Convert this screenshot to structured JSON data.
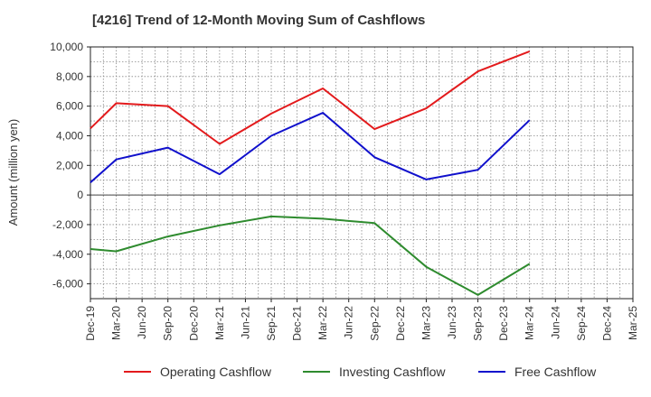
{
  "chart_data": {
    "type": "line",
    "title": "[4216]  Trend of 12-Month Moving Sum of Cashflows",
    "ylabel": "Amount (million yen)",
    "xlabel": "",
    "ylim": [
      -7000,
      10000
    ],
    "yticks": [
      -6000,
      -4000,
      -2000,
      0,
      2000,
      4000,
      6000,
      8000,
      10000
    ],
    "ytick_labels": [
      "-6,000",
      "-4,000",
      "-2,000",
      "0",
      "2,000",
      "4,000",
      "6,000",
      "8,000",
      "10,000"
    ],
    "categories": [
      "Dec-19",
      "Mar-20",
      "Jun-20",
      "Sep-20",
      "Dec-20",
      "Mar-21",
      "Jun-21",
      "Sep-21",
      "Dec-21",
      "Mar-22",
      "Jun-22",
      "Sep-22",
      "Dec-22",
      "Mar-23",
      "Jun-23",
      "Sep-23",
      "Dec-23",
      "Mar-24",
      "Jun-24",
      "Sep-24",
      "Dec-24",
      "Mar-25"
    ],
    "grid": true,
    "legend_position": "bottom",
    "series": [
      {
        "name": "Operating Cashflow",
        "color": "#e31a1c",
        "values": [
          4500,
          6200,
          null,
          6000,
          null,
          3450,
          null,
          5500,
          null,
          7200,
          null,
          4450,
          null,
          5850,
          null,
          8350,
          null,
          9700,
          null,
          null,
          null,
          null
        ]
      },
      {
        "name": "Investing Cashflow",
        "color": "#2e8b2e",
        "values": [
          -3650,
          -3800,
          null,
          -2800,
          null,
          -2050,
          null,
          -1450,
          null,
          -1600,
          null,
          -1900,
          null,
          -4850,
          null,
          -6750,
          null,
          -4650,
          null,
          null,
          null,
          null
        ]
      },
      {
        "name": "Free Cashflow",
        "color": "#1010cc",
        "values": [
          850,
          2400,
          null,
          3200,
          null,
          1400,
          null,
          4000,
          null,
          5550,
          null,
          2550,
          null,
          1050,
          null,
          1700,
          null,
          5050,
          null,
          null,
          null,
          null
        ]
      }
    ]
  }
}
